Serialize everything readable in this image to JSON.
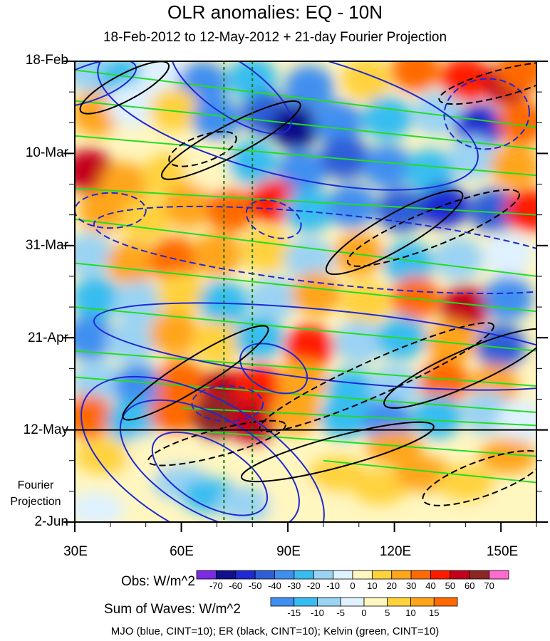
{
  "chart_data": {
    "type": "heatmap",
    "title": "OLR anomalies: EQ - 10N",
    "subtitle": "18-Feb-2012 to 12-May-2012 + 21-day Fourier Projection",
    "x_ticks": [
      "30E",
      "60E",
      "90E",
      "120E",
      "150E"
    ],
    "x_tick_values": [
      30,
      60,
      90,
      120,
      150
    ],
    "xlim": [
      30,
      160
    ],
    "y_ticks": [
      "18-Feb",
      "10-Mar",
      "31-Mar",
      "21-Apr",
      "12-May",
      "2-Jun"
    ],
    "y_tick_days": [
      0,
      21,
      42,
      63,
      84,
      105
    ],
    "ylim_days": [
      0,
      105
    ],
    "observation_end_label": "12-May",
    "projection_label": "Fourier Projection",
    "reference_longitudes": [
      72,
      80
    ],
    "obs_colorbar": {
      "label": "Obs: W/m^2",
      "levels": [
        "-70",
        "-60",
        "-50",
        "-40",
        "-30",
        "-20",
        "-10",
        "0",
        "10",
        "20",
        "30",
        "40",
        "50",
        "60",
        "70"
      ],
      "colors": [
        "#7d2ae8",
        "#10108c",
        "#1e2ad2",
        "#2f5fd8",
        "#3f8ff0",
        "#39bdf0",
        "#9ad3f3",
        "#dff2ff",
        "#fff6c0",
        "#ffd23c",
        "#ffa51a",
        "#ff6a00",
        "#ff1a00",
        "#c4001a",
        "#8c2626",
        "#ff6ad0"
      ]
    },
    "waves_colorbar": {
      "label": "Sum of Waves: W/m^2",
      "levels": [
        "-15",
        "-10",
        "-5",
        "0",
        "5",
        "10",
        "15"
      ],
      "colors": [
        "#3f8ff0",
        "#39bdf0",
        "#9ad3f3",
        "#dff2ff",
        "#fff6c0",
        "#ffd23c",
        "#ffa51a",
        "#ff6a00"
      ]
    },
    "footer": "MJO (blue, CINT=10); ER (black, CINT=10); Kelvin (green, CINT=10)",
    "series": [
      {
        "name": "MJO",
        "color": "#1e2ad2",
        "cint": 10
      },
      {
        "name": "ER",
        "color": "#000000",
        "cint": 10
      },
      {
        "name": "Kelvin",
        "color": "#22dd22",
        "cint": 10
      }
    ],
    "heat_cells": [
      {
        "lon": 34,
        "day": 2,
        "v": -20
      },
      {
        "lon": 44,
        "day": 4,
        "v": -30
      },
      {
        "lon": 55,
        "day": 3,
        "v": -10
      },
      {
        "lon": 66,
        "day": 5,
        "v": -40
      },
      {
        "lon": 80,
        "day": 4,
        "v": -30
      },
      {
        "lon": 96,
        "day": 6,
        "v": -40
      },
      {
        "lon": 112,
        "day": 4,
        "v": 10
      },
      {
        "lon": 126,
        "day": 2,
        "v": 30
      },
      {
        "lon": 140,
        "day": 4,
        "v": 40
      },
      {
        "lon": 152,
        "day": 5,
        "v": 50
      },
      {
        "lon": 156,
        "day": 2,
        "v": 30
      },
      {
        "lon": 36,
        "day": 12,
        "v": 20
      },
      {
        "lon": 46,
        "day": 10,
        "v": -10
      },
      {
        "lon": 58,
        "day": 11,
        "v": 10
      },
      {
        "lon": 70,
        "day": 13,
        "v": -40
      },
      {
        "lon": 84,
        "day": 12,
        "v": -50
      },
      {
        "lon": 92,
        "day": 15,
        "v": -70
      },
      {
        "lon": 104,
        "day": 14,
        "v": -40
      },
      {
        "lon": 118,
        "day": 13,
        "v": -30
      },
      {
        "lon": 132,
        "day": 12,
        "v": -20
      },
      {
        "lon": 144,
        "day": 15,
        "v": -60
      },
      {
        "lon": 156,
        "day": 14,
        "v": 30
      },
      {
        "lon": 34,
        "day": 25,
        "v": 50
      },
      {
        "lon": 44,
        "day": 28,
        "v": 20
      },
      {
        "lon": 56,
        "day": 26,
        "v": 10
      },
      {
        "lon": 68,
        "day": 24,
        "v": 0
      },
      {
        "lon": 80,
        "day": 23,
        "v": -30
      },
      {
        "lon": 94,
        "day": 25,
        "v": -40
      },
      {
        "lon": 106,
        "day": 22,
        "v": -50
      },
      {
        "lon": 118,
        "day": 24,
        "v": -40
      },
      {
        "lon": 130,
        "day": 25,
        "v": -30
      },
      {
        "lon": 142,
        "day": 22,
        "v": -20
      },
      {
        "lon": 154,
        "day": 24,
        "v": 20
      },
      {
        "lon": 38,
        "day": 34,
        "v": 20
      },
      {
        "lon": 50,
        "day": 36,
        "v": 10
      },
      {
        "lon": 62,
        "day": 33,
        "v": 20
      },
      {
        "lon": 74,
        "day": 34,
        "v": 30
      },
      {
        "lon": 86,
        "day": 32,
        "v": 40
      },
      {
        "lon": 96,
        "day": 34,
        "v": -30
      },
      {
        "lon": 108,
        "day": 33,
        "v": -40
      },
      {
        "lon": 122,
        "day": 34,
        "v": -50
      },
      {
        "lon": 134,
        "day": 33,
        "v": -60
      },
      {
        "lon": 148,
        "day": 34,
        "v": -50
      },
      {
        "lon": 158,
        "day": 34,
        "v": 40
      },
      {
        "lon": 34,
        "day": 44,
        "v": -20
      },
      {
        "lon": 46,
        "day": 46,
        "v": 20
      },
      {
        "lon": 58,
        "day": 45,
        "v": 30
      },
      {
        "lon": 70,
        "day": 44,
        "v": 20
      },
      {
        "lon": 84,
        "day": 43,
        "v": 10
      },
      {
        "lon": 96,
        "day": 45,
        "v": -20
      },
      {
        "lon": 110,
        "day": 44,
        "v": 20
      },
      {
        "lon": 124,
        "day": 46,
        "v": -30
      },
      {
        "lon": 138,
        "day": 45,
        "v": -20
      },
      {
        "lon": 152,
        "day": 44,
        "v": -10
      },
      {
        "lon": 36,
        "day": 54,
        "v": -30
      },
      {
        "lon": 48,
        "day": 55,
        "v": -20
      },
      {
        "lon": 60,
        "day": 53,
        "v": 10
      },
      {
        "lon": 72,
        "day": 55,
        "v": -30
      },
      {
        "lon": 86,
        "day": 54,
        "v": -20
      },
      {
        "lon": 98,
        "day": 53,
        "v": 20
      },
      {
        "lon": 112,
        "day": 55,
        "v": 10
      },
      {
        "lon": 126,
        "day": 54,
        "v": 30
      },
      {
        "lon": 140,
        "day": 56,
        "v": 50
      },
      {
        "lon": 152,
        "day": 54,
        "v": -40
      },
      {
        "lon": 34,
        "day": 63,
        "v": -40
      },
      {
        "lon": 46,
        "day": 64,
        "v": -20
      },
      {
        "lon": 58,
        "day": 62,
        "v": 20
      },
      {
        "lon": 70,
        "day": 64,
        "v": 10
      },
      {
        "lon": 82,
        "day": 63,
        "v": -30
      },
      {
        "lon": 96,
        "day": 65,
        "v": 40
      },
      {
        "lon": 110,
        "day": 64,
        "v": -20
      },
      {
        "lon": 122,
        "day": 63,
        "v": -30
      },
      {
        "lon": 136,
        "day": 64,
        "v": 20
      },
      {
        "lon": 150,
        "day": 65,
        "v": -50
      },
      {
        "lon": 36,
        "day": 73,
        "v": -20
      },
      {
        "lon": 48,
        "day": 74,
        "v": -40
      },
      {
        "lon": 60,
        "day": 73,
        "v": 30
      },
      {
        "lon": 72,
        "day": 75,
        "v": 50
      },
      {
        "lon": 82,
        "day": 74,
        "v": 40
      },
      {
        "lon": 94,
        "day": 73,
        "v": 20
      },
      {
        "lon": 108,
        "day": 75,
        "v": -30
      },
      {
        "lon": 120,
        "day": 74,
        "v": -20
      },
      {
        "lon": 134,
        "day": 73,
        "v": 30
      },
      {
        "lon": 148,
        "day": 74,
        "v": 20
      },
      {
        "lon": 34,
        "day": 81,
        "v": 30
      },
      {
        "lon": 46,
        "day": 82,
        "v": -30
      },
      {
        "lon": 58,
        "day": 80,
        "v": 30
      },
      {
        "lon": 70,
        "day": 81,
        "v": 60
      },
      {
        "lon": 80,
        "day": 82,
        "v": 50
      },
      {
        "lon": 92,
        "day": 80,
        "v": 20
      },
      {
        "lon": 106,
        "day": 81,
        "v": -30
      },
      {
        "lon": 118,
        "day": 82,
        "v": -40
      },
      {
        "lon": 132,
        "day": 81,
        "v": -30
      },
      {
        "lon": 146,
        "day": 80,
        "v": -20
      },
      {
        "lon": 156,
        "day": 82,
        "v": -10
      }
    ],
    "wave_cells": [
      {
        "lon": 38,
        "day": 90,
        "v": 5
      },
      {
        "lon": 52,
        "day": 89,
        "v": 0
      },
      {
        "lon": 60,
        "day": 96,
        "v": -10
      },
      {
        "lon": 68,
        "day": 99,
        "v": -15
      },
      {
        "lon": 78,
        "day": 101,
        "v": -10
      },
      {
        "lon": 92,
        "day": 100,
        "v": 0
      },
      {
        "lon": 104,
        "day": 94,
        "v": 5
      },
      {
        "lon": 116,
        "day": 97,
        "v": 5
      },
      {
        "lon": 128,
        "day": 94,
        "v": 10
      },
      {
        "lon": 140,
        "day": 96,
        "v": 5
      },
      {
        "lon": 152,
        "day": 90,
        "v": 10
      },
      {
        "lon": 156,
        "day": 102,
        "v": 0
      },
      {
        "lon": 36,
        "day": 102,
        "v": -5
      },
      {
        "lon": 120,
        "day": 88,
        "v": 10
      }
    ],
    "mjo_ellipses": [
      {
        "lon": 34,
        "day": 5,
        "rl": 14,
        "rd": 4,
        "rot": -20,
        "dash": false
      },
      {
        "lon": 74,
        "day": 6,
        "rl": 20,
        "rd": 6,
        "rot": 35,
        "dash": false
      },
      {
        "lon": 90,
        "day": 12,
        "rl": 55,
        "rd": 14,
        "rot": 14,
        "dash": false
      },
      {
        "lon": 146,
        "day": 12,
        "rl": 12,
        "rd": 8,
        "rot": -5,
        "dash": true
      },
      {
        "lon": 40,
        "day": 34,
        "rl": 10,
        "rd": 4,
        "rot": 0,
        "dash": true
      },
      {
        "lon": 86,
        "day": 36,
        "rl": 8,
        "rd": 4,
        "rot": 20,
        "dash": true
      },
      {
        "lon": 105,
        "day": 43,
        "rl": 70,
        "rd": 8,
        "rot": 6,
        "dash": true
      },
      {
        "lon": 105,
        "day": 65,
        "rl": 70,
        "rd": 8,
        "rot": 6,
        "dash": false
      },
      {
        "lon": 86,
        "day": 70,
        "rl": 10,
        "rd": 5,
        "rot": 25,
        "dash": false
      },
      {
        "lon": 73,
        "day": 78,
        "rl": 10,
        "rd": 4,
        "rot": 0,
        "dash": true
      },
      {
        "lon": 68,
        "day": 94,
        "rl": 18,
        "rd": 7,
        "rot": 30,
        "dash": false
      },
      {
        "lon": 68,
        "day": 92,
        "rl": 28,
        "rd": 11,
        "rot": 30,
        "dash": false
      },
      {
        "lon": 66,
        "day": 92,
        "rl": 38,
        "rd": 15,
        "rot": 30,
        "dash": false
      }
    ],
    "er_ellipses": [
      {
        "lon": 44,
        "day": 6,
        "rl": 14,
        "rd": 3,
        "rot": -28,
        "dash": false
      },
      {
        "lon": 74,
        "day": 18,
        "rl": 22,
        "rd": 3.5,
        "rot": -28,
        "dash": false
      },
      {
        "lon": 66,
        "day": 20,
        "rl": 10,
        "rd": 3,
        "rot": -20,
        "dash": true
      },
      {
        "lon": 120,
        "day": 39,
        "rl": 22,
        "rd": 4,
        "rot": -30,
        "dash": false
      },
      {
        "lon": 131,
        "day": 38,
        "rl": 26,
        "rd": 4,
        "rot": -22,
        "dash": true
      },
      {
        "lon": 64,
        "day": 71,
        "rl": 24,
        "rd": 3.5,
        "rot": -32,
        "dash": false
      },
      {
        "lon": 115,
        "day": 72,
        "rl": 36,
        "rd": 4,
        "rot": -24,
        "dash": true
      },
      {
        "lon": 140,
        "day": 70,
        "rl": 25,
        "rd": 4,
        "rot": -24,
        "dash": false
      },
      {
        "lon": 70,
        "day": 87,
        "rl": 20,
        "rd": 3,
        "rot": -15,
        "dash": true
      },
      {
        "lon": 104,
        "day": 89,
        "rl": 28,
        "rd": 3.5,
        "rot": -15,
        "dash": false
      },
      {
        "lon": 145,
        "day": 95,
        "rl": 18,
        "rd": 4,
        "rot": -20,
        "dash": true
      },
      {
        "lon": 150,
        "day": 5,
        "rl": 18,
        "rd": 3,
        "rot": -15,
        "dash": true
      }
    ],
    "kelvin_lines": [
      {
        "lon1": 30,
        "day1": 2,
        "lon2": 160,
        "day2": 15
      },
      {
        "lon1": 30,
        "day1": 9,
        "lon2": 160,
        "day2": 20
      },
      {
        "lon1": 30,
        "day1": 17,
        "lon2": 160,
        "day2": 26
      },
      {
        "lon1": 30,
        "day1": 29,
        "lon2": 160,
        "day2": 35
      },
      {
        "lon1": 30,
        "day1": 36,
        "lon2": 160,
        "day2": 49
      },
      {
        "lon1": 30,
        "day1": 46,
        "lon2": 160,
        "day2": 57
      },
      {
        "lon1": 30,
        "day1": 56,
        "lon2": 160,
        "day2": 66
      },
      {
        "lon1": 30,
        "day1": 66,
        "lon2": 160,
        "day2": 74
      },
      {
        "lon1": 30,
        "day1": 72,
        "lon2": 160,
        "day2": 80
      },
      {
        "lon1": 60,
        "day1": 79,
        "lon2": 160,
        "day2": 83
      },
      {
        "lon1": 60,
        "day1": 84,
        "lon2": 160,
        "day2": 90
      },
      {
        "lon1": 100,
        "day1": 91,
        "lon2": 160,
        "day2": 96
      }
    ]
  }
}
